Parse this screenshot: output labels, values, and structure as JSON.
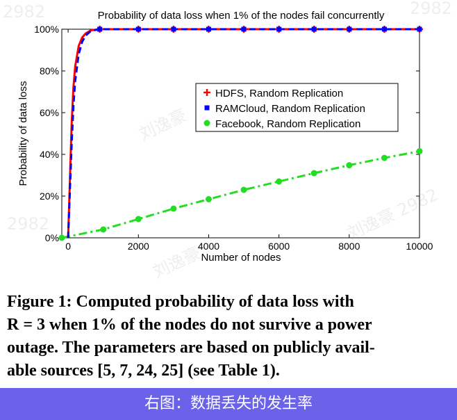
{
  "chart_data": {
    "type": "line",
    "title": "Probability of data loss when 1% of the nodes fail concurrently",
    "xlabel": "Number of nodes",
    "ylabel": "Probability of data loss",
    "xlim": [
      -180,
      10000
    ],
    "ylim": [
      0,
      100
    ],
    "x_ticks": [
      "0",
      "2000",
      "4000",
      "6000",
      "8000",
      "10000"
    ],
    "y_ticks": [
      "0%",
      "20%",
      "40%",
      "60%",
      "80%",
      "100%"
    ],
    "grid": false,
    "legend_position": "center-right",
    "series": [
      {
        "name": "HDFS, Random Replication",
        "color": "#ff0000",
        "line_style": "solid",
        "marker": "plus",
        "curve": [
          [
            0,
            0
          ],
          [
            100,
            55
          ],
          [
            150,
            72
          ],
          [
            200,
            82
          ],
          [
            300,
            92
          ],
          [
            400,
            96
          ],
          [
            500,
            98
          ],
          [
            650,
            99.5
          ],
          [
            900,
            100
          ],
          [
            2000,
            100
          ],
          [
            3000,
            100
          ],
          [
            4000,
            100
          ],
          [
            5000,
            100
          ],
          [
            6000,
            100
          ],
          [
            7000,
            100
          ],
          [
            8000,
            100
          ],
          [
            9000,
            100
          ],
          [
            10000,
            100
          ]
        ],
        "markers": [
          [
            900,
            100
          ],
          [
            2000,
            100
          ],
          [
            3000,
            100
          ],
          [
            4000,
            100
          ],
          [
            5000,
            100
          ],
          [
            6000,
            100
          ],
          [
            7000,
            100
          ],
          [
            8000,
            100
          ],
          [
            9000,
            100
          ],
          [
            10000,
            100
          ]
        ]
      },
      {
        "name": "RAMCloud, Random Replication",
        "color": "#0000ff",
        "line_style": "dashed",
        "marker": "square",
        "curve": [
          [
            0,
            0
          ],
          [
            100,
            45
          ],
          [
            150,
            63
          ],
          [
            200,
            75
          ],
          [
            300,
            88
          ],
          [
            400,
            94
          ],
          [
            500,
            97
          ],
          [
            650,
            99.2
          ],
          [
            900,
            100
          ],
          [
            2000,
            100
          ],
          [
            3000,
            100
          ],
          [
            4000,
            100
          ],
          [
            5000,
            100
          ],
          [
            6000,
            100
          ],
          [
            7000,
            100
          ],
          [
            8000,
            100
          ],
          [
            9000,
            100
          ],
          [
            10000,
            100
          ]
        ],
        "markers": [
          [
            900,
            100
          ],
          [
            2000,
            100
          ],
          [
            3000,
            100
          ],
          [
            4000,
            100
          ],
          [
            5000,
            100
          ],
          [
            6000,
            100
          ],
          [
            7000,
            100
          ],
          [
            8000,
            100
          ],
          [
            9000,
            100
          ],
          [
            10000,
            100
          ]
        ]
      },
      {
        "name": "Facebook, Random Replication",
        "color": "#22dd22",
        "line_style": "dashdot",
        "marker": "circle",
        "curve": [
          [
            -180,
            0
          ],
          [
            1000,
            4
          ],
          [
            2000,
            9
          ],
          [
            3000,
            14
          ],
          [
            4000,
            18.5
          ],
          [
            5000,
            23
          ],
          [
            6000,
            27
          ],
          [
            7000,
            31
          ],
          [
            8000,
            34.8
          ],
          [
            9000,
            38.3
          ],
          [
            10000,
            41.5
          ]
        ],
        "markers": [
          [
            -180,
            0
          ],
          [
            1000,
            4
          ],
          [
            2000,
            9
          ],
          [
            3000,
            14
          ],
          [
            4000,
            18.5
          ],
          [
            5000,
            23
          ],
          [
            6000,
            27
          ],
          [
            7000,
            31
          ],
          [
            8000,
            34.8
          ],
          [
            9000,
            38.3
          ],
          [
            10000,
            41.5
          ]
        ]
      }
    ]
  },
  "caption": {
    "line1": "Figure 1: Computed probability of data loss with",
    "line2": "R = 3 when 1% of the nodes do not survive a power",
    "line3": "outage. The parameters are based on publicly avail-",
    "line4": "able sources [5, 7, 24, 25] (see Table 1)."
  },
  "banner": {
    "text": "右图：数据丢失的发生率"
  },
  "watermarks": [
    "2982",
    "刘逸豪",
    "2982",
    "刘逸豪 2982",
    "刘逸豪",
    "2982"
  ]
}
